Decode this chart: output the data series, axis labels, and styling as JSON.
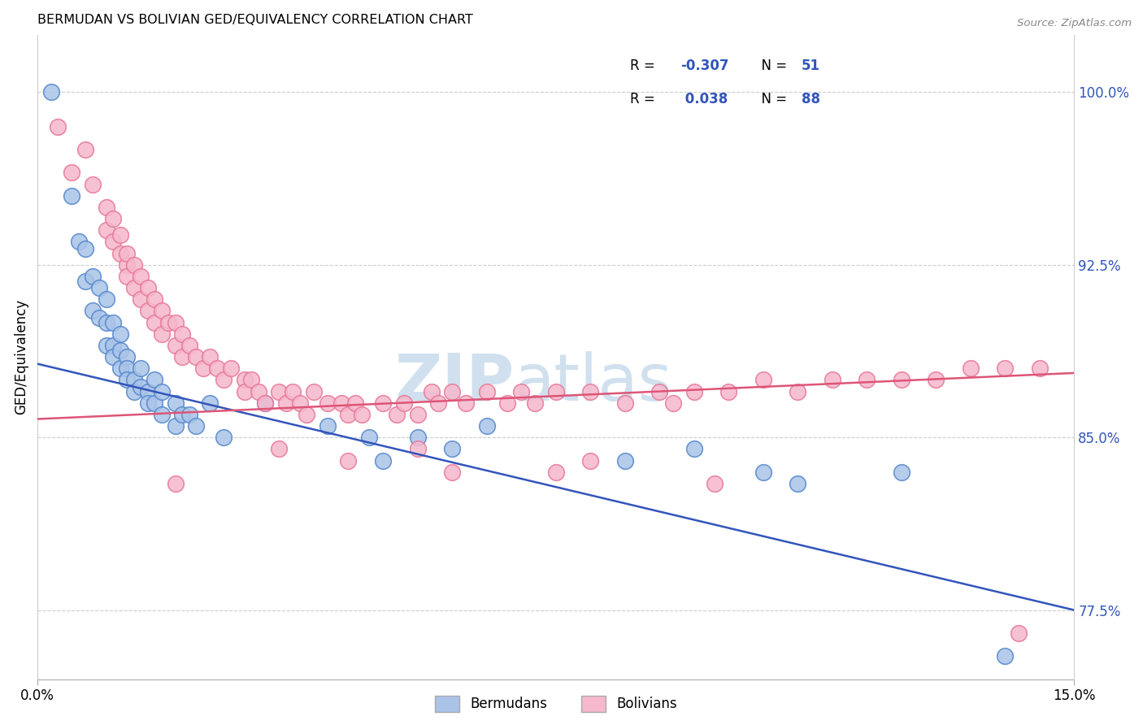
{
  "title": "BERMUDAN VS BOLIVIAN GED/EQUIVALENCY CORRELATION CHART",
  "source": "Source: ZipAtlas.com",
  "ylabel": "GED/Equivalency",
  "x_range": [
    0.0,
    15.0
  ],
  "y_range": [
    74.5,
    102.5
  ],
  "y_ticks": [
    77.5,
    85.0,
    92.5,
    100.0
  ],
  "y_tick_labels": [
    "77.5%",
    "85.0%",
    "92.5%",
    "100.0%"
  ],
  "bermuda_color": "#aac4e8",
  "bermuda_edge": "#5588cc",
  "bolivia_color": "#f5b8cc",
  "bolivia_edge": "#e87898",
  "trendline_bermuda": "#3355bb",
  "trendline_bolivia": "#dd5577",
  "watermark_color": "#d0e0ee",
  "bermuda_R": -0.307,
  "bermuda_N": 51,
  "bolivia_R": 0.038,
  "bolivia_N": 88,
  "bermuda_trend_x0": 0.0,
  "bermuda_trend_y0": 88.2,
  "bermuda_trend_x1": 15.0,
  "bermuda_trend_y1": 77.5,
  "bolivia_trend_x0": 0.0,
  "bolivia_trend_y0": 85.8,
  "bolivia_trend_x1": 15.0,
  "bolivia_trend_y1": 87.8,
  "bermuda_points_x": [
    0.2,
    0.5,
    0.6,
    0.7,
    0.7,
    0.8,
    0.8,
    0.9,
    0.9,
    1.0,
    1.0,
    1.0,
    1.1,
    1.1,
    1.1,
    1.2,
    1.2,
    1.2,
    1.3,
    1.3,
    1.3,
    1.4,
    1.4,
    1.5,
    1.5,
    1.6,
    1.6,
    1.7,
    1.7,
    1.8,
    1.8,
    2.0,
    2.0,
    2.1,
    2.2,
    2.3,
    2.5,
    2.7,
    3.3,
    4.2,
    4.8,
    5.0,
    5.5,
    6.0,
    6.5,
    8.5,
    9.5,
    10.5,
    11.0,
    12.5,
    14.0
  ],
  "bermuda_points_y": [
    100.0,
    95.5,
    93.5,
    93.2,
    91.8,
    92.0,
    90.5,
    91.5,
    90.2,
    91.0,
    90.0,
    89.0,
    90.0,
    89.0,
    88.5,
    89.5,
    88.8,
    88.0,
    88.5,
    88.0,
    87.5,
    87.5,
    87.0,
    88.0,
    87.2,
    87.0,
    86.5,
    87.5,
    86.5,
    87.0,
    86.0,
    86.5,
    85.5,
    86.0,
    86.0,
    85.5,
    86.5,
    85.0,
    86.5,
    85.5,
    85.0,
    84.0,
    85.0,
    84.5,
    85.5,
    84.0,
    84.5,
    83.5,
    83.0,
    83.5,
    75.5
  ],
  "bolivia_points_x": [
    0.3,
    0.5,
    0.7,
    0.8,
    1.0,
    1.0,
    1.1,
    1.1,
    1.2,
    1.2,
    1.3,
    1.3,
    1.3,
    1.4,
    1.4,
    1.5,
    1.5,
    1.6,
    1.6,
    1.7,
    1.7,
    1.8,
    1.8,
    1.9,
    2.0,
    2.0,
    2.1,
    2.1,
    2.2,
    2.3,
    2.4,
    2.5,
    2.6,
    2.7,
    2.8,
    3.0,
    3.0,
    3.1,
    3.2,
    3.3,
    3.5,
    3.6,
    3.7,
    3.8,
    3.9,
    4.0,
    4.2,
    4.4,
    4.5,
    4.6,
    4.7,
    5.0,
    5.2,
    5.3,
    5.5,
    5.7,
    5.8,
    6.0,
    6.2,
    6.5,
    6.8,
    7.0,
    7.2,
    7.5,
    8.0,
    8.5,
    9.0,
    9.2,
    9.5,
    10.0,
    10.5,
    11.0,
    11.5,
    12.0,
    12.5,
    13.0,
    13.5,
    14.0,
    14.5,
    7.5,
    3.5,
    2.0,
    4.5,
    6.0,
    8.0,
    5.5,
    9.8,
    14.2
  ],
  "bolivia_points_y": [
    98.5,
    96.5,
    97.5,
    96.0,
    95.0,
    94.0,
    94.5,
    93.5,
    93.0,
    93.8,
    92.5,
    93.0,
    92.0,
    92.5,
    91.5,
    92.0,
    91.0,
    91.5,
    90.5,
    91.0,
    90.0,
    90.5,
    89.5,
    90.0,
    90.0,
    89.0,
    89.5,
    88.5,
    89.0,
    88.5,
    88.0,
    88.5,
    88.0,
    87.5,
    88.0,
    87.5,
    87.0,
    87.5,
    87.0,
    86.5,
    87.0,
    86.5,
    87.0,
    86.5,
    86.0,
    87.0,
    86.5,
    86.5,
    86.0,
    86.5,
    86.0,
    86.5,
    86.0,
    86.5,
    86.0,
    87.0,
    86.5,
    87.0,
    86.5,
    87.0,
    86.5,
    87.0,
    86.5,
    87.0,
    87.0,
    86.5,
    87.0,
    86.5,
    87.0,
    87.0,
    87.5,
    87.0,
    87.5,
    87.5,
    87.5,
    87.5,
    88.0,
    88.0,
    88.0,
    83.5,
    84.5,
    83.0,
    84.0,
    83.5,
    84.0,
    84.5,
    83.0,
    76.5
  ]
}
